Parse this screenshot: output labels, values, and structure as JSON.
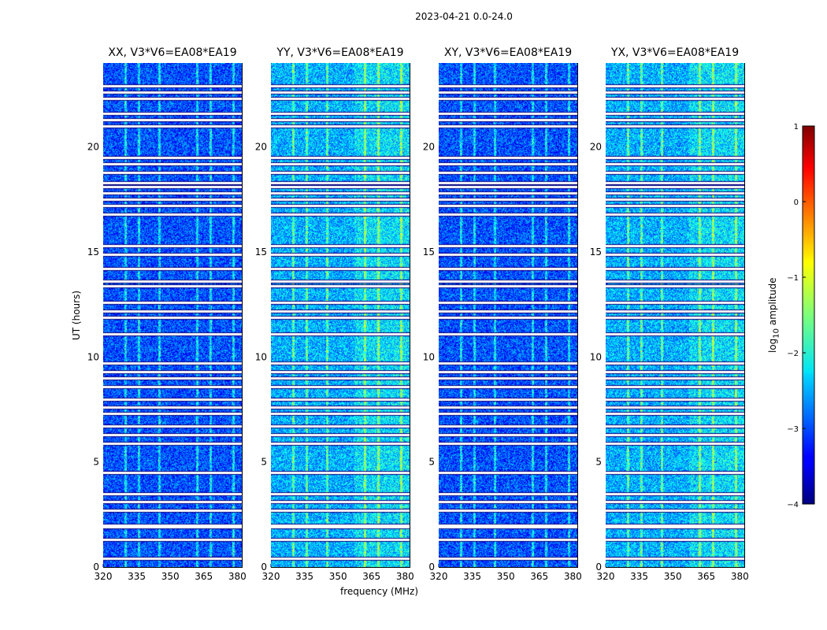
{
  "suptitle": "2023-04-21 0.0-24.0",
  "chart_data": {
    "type": "heatmap",
    "title": "2023-04-21 0.0-24.0",
    "xlabel": "frequency (MHz)",
    "ylabel": "UT (hours)",
    "colorbar_label_html": "log<sub>10</sub> amplitude",
    "colorbar_label_text": "log10 amplitude",
    "colormap": "jet",
    "x_range": [
      320,
      382
    ],
    "y_range": [
      0,
      24
    ],
    "x_ticks": [
      320,
      335,
      350,
      365,
      380
    ],
    "x_tick_labels": [
      "320",
      "335",
      "350",
      "365",
      "380"
    ],
    "y_ticks": [
      0,
      5,
      10,
      15,
      20
    ],
    "y_tick_labels": [
      "0",
      "5",
      "10",
      "15",
      "20"
    ],
    "color_range": [
      -4,
      1
    ],
    "colorbar_ticks": [
      1,
      0,
      -1,
      -2,
      -3,
      -4
    ],
    "colorbar_tick_labels": [
      "1",
      "0",
      "−1",
      "−2",
      "−3",
      "−4"
    ],
    "panels": [
      {
        "title": "XX, V3*V6=EA08*EA19",
        "baseline_log_amp": -3.0,
        "show_ylabel": true
      },
      {
        "title": "YY, V3*V6=EA08*EA19",
        "baseline_log_amp": -2.5,
        "show_ylabel": false
      },
      {
        "title": "XY, V3*V6=EA08*EA19",
        "baseline_log_amp": -3.0,
        "show_ylabel": false
      },
      {
        "title": "YX, V3*V6=EA08*EA19",
        "baseline_log_amp": -2.5,
        "show_ylabel": false
      }
    ],
    "flagged_ut_hours": [
      0.4,
      1.3,
      1.9,
      2.0,
      2.7,
      3.1,
      3.5,
      4.5,
      5.9,
      6.3,
      6.7,
      7.3,
      7.6,
      8.0,
      8.6,
      9.0,
      9.3,
      9.7,
      11.1,
      11.9,
      12.2,
      12.6,
      13.4,
      13.6,
      14.2,
      14.9,
      15.3,
      16.8,
      17.2,
      17.5,
      17.8,
      18.1,
      18.3,
      18.8,
      19.2,
      19.5,
      21.0,
      21.3,
      21.6,
      22.3,
      22.6,
      22.9
    ],
    "bright_channels_mhz": [
      330,
      336,
      345,
      362,
      368,
      378
    ]
  }
}
